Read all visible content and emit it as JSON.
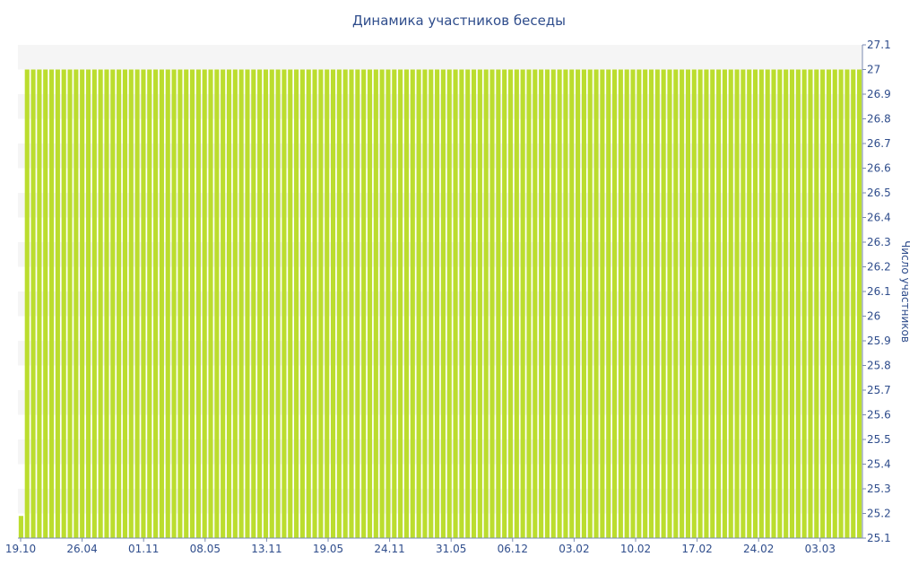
{
  "chart_data": {
    "type": "bar",
    "title": "Динамика участников беседы",
    "ylabel": "Число участников",
    "xlabel": "",
    "ylim": [
      25.1,
      27.1
    ],
    "y_ticks": [
      "25.1",
      "25.2",
      "25.3",
      "25.4",
      "25.5",
      "25.6",
      "25.7",
      "25.8",
      "25.9",
      "26",
      "26.1",
      "26.2",
      "26.3",
      "26.4",
      "26.5",
      "26.6",
      "26.7",
      "26.8",
      "26.9",
      "27",
      "27.1"
    ],
    "x_tick_labels": [
      "19.10",
      "26.04",
      "01.11",
      "08.05",
      "13.11",
      "19.05",
      "24.11",
      "31.05",
      "06.12",
      "03.02",
      "10.02",
      "17.02",
      "24.02",
      "03.03"
    ],
    "y_axis_position": "right",
    "grid": "horizontal bands",
    "bar_color": "#bbdd2e",
    "values": [
      25.19,
      27,
      27,
      27,
      27,
      27,
      27,
      27,
      27,
      27,
      27,
      27,
      27,
      27,
      27,
      27,
      27,
      27,
      27,
      27,
      27,
      27,
      27,
      27,
      27,
      27,
      27,
      27,
      27,
      27,
      27,
      27,
      27,
      27,
      27,
      27,
      27,
      27,
      27,
      27,
      27,
      27,
      27,
      27,
      27,
      27,
      27,
      27,
      27,
      27,
      27,
      27,
      27,
      27,
      27,
      27,
      27,
      27,
      27,
      27,
      27,
      27,
      27,
      27,
      27,
      27,
      27,
      27,
      27,
      27,
      27,
      27,
      27,
      27,
      27,
      27,
      27,
      27,
      27,
      27,
      27,
      27,
      27,
      27,
      27,
      27,
      27,
      27,
      27,
      27,
      27,
      27,
      27,
      27,
      27,
      27,
      27,
      27,
      27,
      27,
      27,
      27,
      27,
      27,
      27,
      27,
      27,
      27,
      27,
      27,
      27,
      27,
      27,
      27,
      27,
      27,
      27,
      27,
      27,
      27,
      27,
      27,
      27,
      27,
      27,
      27,
      27,
      27,
      27,
      27,
      27,
      27,
      27,
      27,
      27,
      27,
      27,
      27
    ]
  }
}
